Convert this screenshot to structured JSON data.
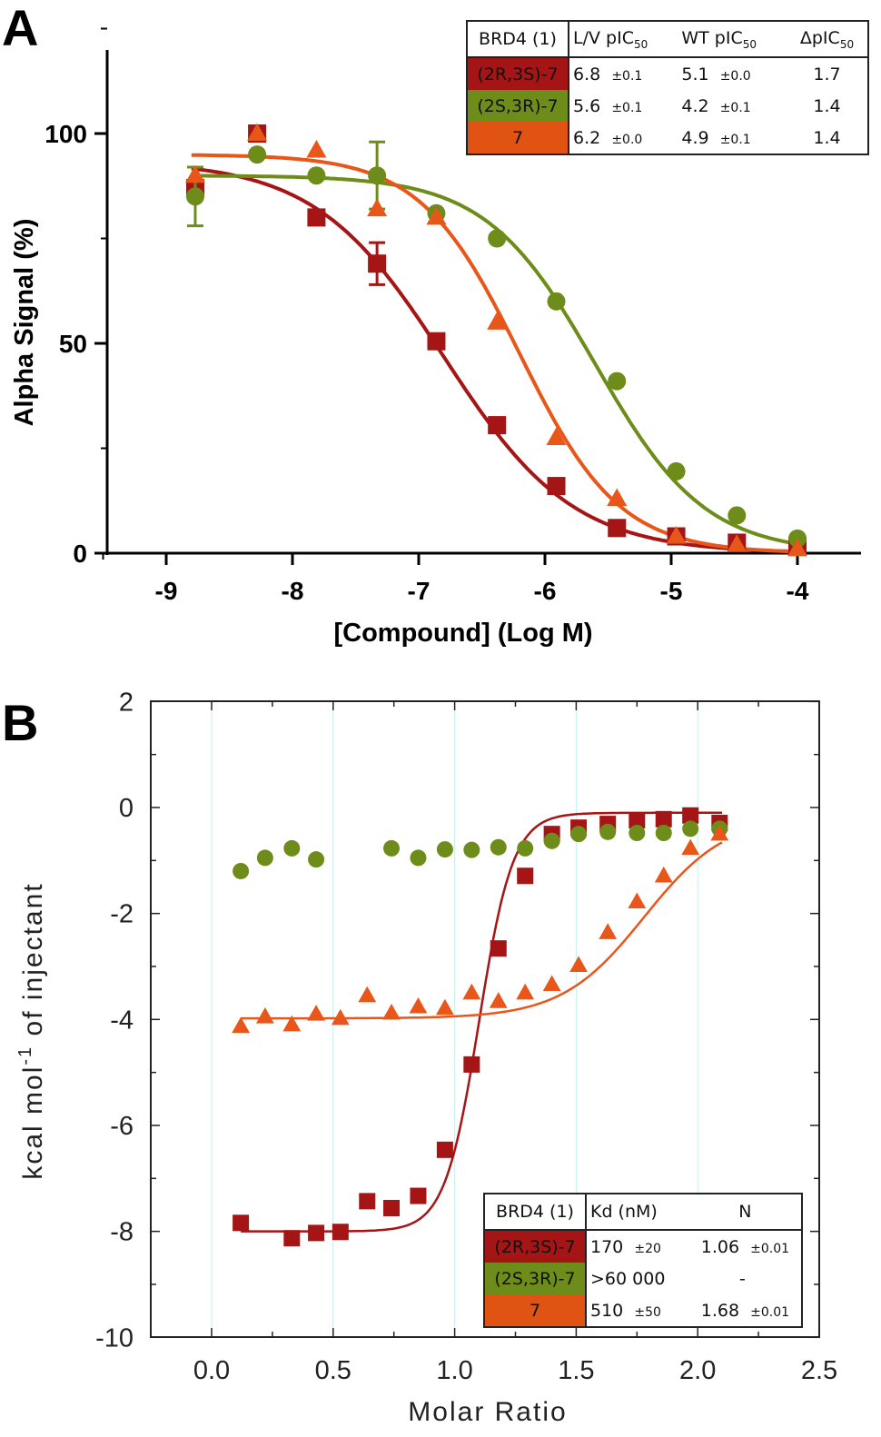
{
  "chart_data": [
    {
      "panel_label": "A",
      "type": "scatter",
      "xlabel": "[Compound] (Log M)",
      "ylabel": "Alpha Signal (%)",
      "xlim": [
        -9.5,
        -3.5
      ],
      "ylim": [
        0,
        120
      ],
      "xticks": [
        "-9",
        "-8",
        "-7",
        "-6",
        "-5",
        "-4"
      ],
      "yticks": [
        "0",
        "50",
        "100"
      ],
      "grid": false,
      "series": [
        {
          "name": "(2R,3S)-7",
          "color": "#a51515",
          "marker": "square",
          "x": [
            -8.77,
            -8.28,
            -7.81,
            -7.33,
            -6.86,
            -6.38,
            -5.91,
            -5.43,
            -4.96,
            -4.48,
            -4.0
          ],
          "y": [
            87,
            100,
            80,
            69,
            50.5,
            30.5,
            16,
            6,
            4,
            2.5,
            1.7
          ],
          "err": [
            0,
            0,
            0,
            5,
            0,
            0,
            0,
            0,
            0,
            0,
            0
          ]
        },
        {
          "name": "(2S,3R)-7",
          "color": "#6e8c1a",
          "marker": "circle",
          "x": [
            -8.77,
            -8.28,
            -7.81,
            -7.33,
            -6.86,
            -6.38,
            -5.91,
            -5.43,
            -4.96,
            -4.48,
            -4.0
          ],
          "y": [
            85,
            95,
            90,
            90,
            81,
            75,
            60,
            41,
            19.5,
            9,
            3.5
          ],
          "err": [
            7,
            0,
            0,
            8,
            0,
            0,
            0,
            0,
            0,
            0,
            0
          ]
        },
        {
          "name": "7",
          "color": "#e8561a",
          "marker": "triangle",
          "x": [
            -8.77,
            -8.28,
            -7.81,
            -7.33,
            -6.86,
            -6.38,
            -5.91,
            -5.43,
            -4.96,
            -4.48,
            -4.0
          ],
          "y": [
            90,
            100,
            96,
            82,
            80,
            55,
            27.5,
            13,
            4,
            2,
            1
          ],
          "err": [
            0,
            0,
            0,
            0,
            0,
            0,
            0,
            0,
            0,
            0,
            0
          ]
        }
      ],
      "table": {
        "headers": [
          "BRD4 (1)",
          "L/V pIC",
          "WT pIC",
          "ΔpIC"
        ],
        "sub": "50",
        "rows": [
          {
            "name": "(2R,3S)-7",
            "color": "#a51515",
            "lv": "6.8",
            "lv_err": "±0.1",
            "wt": "5.1",
            "wt_err": "±0.0",
            "d": "1.7"
          },
          {
            "name": "(2S,3R)-7",
            "color": "#6e8c1a",
            "lv": "5.6",
            "lv_err": "±0.1",
            "wt": "4.2",
            "wt_err": "±0.1",
            "d": "1.4"
          },
          {
            "name": "7",
            "color": "#e05312",
            "lv": "6.2",
            "lv_err": "±0.0",
            "wt": "4.9",
            "wt_err": "±0.1",
            "d": "1.4"
          }
        ]
      }
    },
    {
      "panel_label": "B",
      "type": "scatter",
      "xlabel": "Molar Ratio",
      "ylabel": "kcal mol-1 of injectant",
      "xlim": [
        -0.25,
        2.5
      ],
      "ylim": [
        -10,
        2
      ],
      "xticks": [
        "0.0",
        "0.5",
        "1.0",
        "1.5",
        "2.0",
        "2.5"
      ],
      "yticks": [
        "-10",
        "-8",
        "-6",
        "-4",
        "-2",
        "0",
        "2"
      ],
      "grid": "vertical",
      "series": [
        {
          "name": "(2R,3S)-7",
          "color": "#a51515",
          "marker": "square",
          "x": [
            0.12,
            0.33,
            0.43,
            0.53,
            0.64,
            0.74,
            0.85,
            0.96,
            1.07,
            1.18,
            1.29,
            1.4,
            1.51,
            1.63,
            1.75,
            1.86,
            1.97,
            2.09
          ],
          "y": [
            -7.84,
            -8.13,
            -8.03,
            -8.01,
            -7.43,
            -7.56,
            -7.33,
            -6.46,
            -4.85,
            -2.66,
            -1.29,
            -0.5,
            -0.38,
            -0.31,
            -0.24,
            -0.22,
            -0.15,
            -0.29
          ]
        },
        {
          "name": "(2S,3R)-7",
          "color": "#6e8c1a",
          "marker": "circle",
          "x": [
            0.12,
            0.22,
            0.33,
            0.43,
            0.74,
            0.85,
            0.96,
            1.07,
            1.18,
            1.29,
            1.4,
            1.51,
            1.63,
            1.75,
            1.86,
            1.97,
            2.09
          ],
          "y": [
            -1.2,
            -0.95,
            -0.77,
            -0.98,
            -0.77,
            -0.95,
            -0.79,
            -0.8,
            -0.75,
            -0.77,
            -0.63,
            -0.5,
            -0.46,
            -0.48,
            -0.48,
            -0.4,
            -0.4
          ]
        },
        {
          "name": "7",
          "color": "#e8561a",
          "marker": "triangle",
          "x": [
            0.12,
            0.22,
            0.33,
            0.43,
            0.53,
            0.64,
            0.74,
            0.85,
            0.96,
            1.07,
            1.18,
            1.29,
            1.4,
            1.51,
            1.63,
            1.75,
            1.86,
            1.97,
            2.09
          ],
          "y": [
            -4.13,
            -3.95,
            -4.1,
            -3.9,
            -3.98,
            -3.55,
            -3.88,
            -3.76,
            -3.79,
            -3.5,
            -3.66,
            -3.5,
            -3.34,
            -2.98,
            -2.36,
            -1.78,
            -1.29,
            -0.77,
            -0.5
          ]
        }
      ],
      "table": {
        "headers": [
          "BRD4 (1)",
          "Kd (nM)",
          "N"
        ],
        "rows": [
          {
            "name": "(2R,3S)-7",
            "color": "#a51515",
            "kd": "170",
            "kd_err": "±20",
            "n": "1.06",
            "n_err": "±0.01"
          },
          {
            "name": "(2S,3R)-7",
            "color": "#6e8c1a",
            "kd": ">60 000",
            "kd_err": "",
            "n": "-",
            "n_err": ""
          },
          {
            "name": "7",
            "color": "#e05312",
            "kd": "510",
            "kd_err": "±50",
            "n": "1.68",
            "n_err": "±0.01"
          }
        ]
      }
    }
  ]
}
